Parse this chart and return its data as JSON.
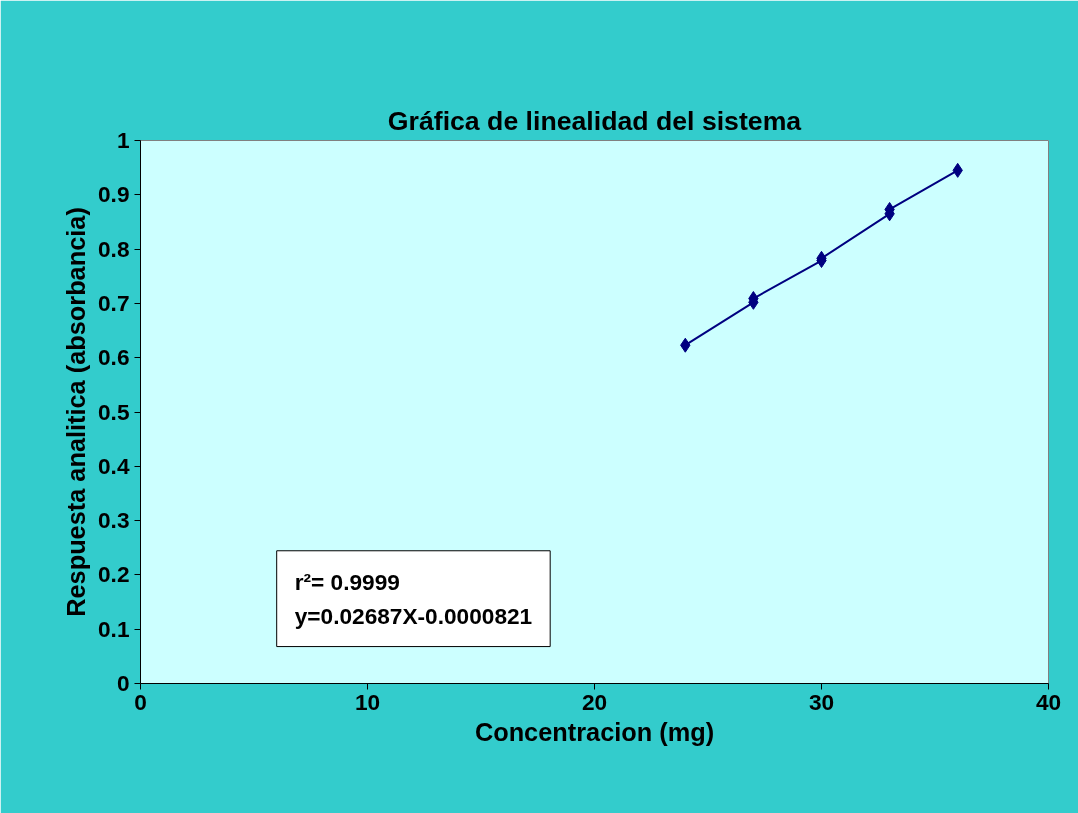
{
  "chart_data": {
    "type": "line",
    "title": "Gráfica de linealidad del sistema",
    "xlabel": "Concentracion (mg)",
    "ylabel": "Respuesta analitica (absorbancia)",
    "x": [
      24,
      27,
      27,
      30,
      30,
      33,
      33,
      36
    ],
    "series": [
      {
        "color": "#000080",
        "values": [
          0.623,
          0.702,
          0.709,
          0.779,
          0.783,
          0.865,
          0.873,
          0.945
        ]
      }
    ],
    "xlim": [
      0,
      40
    ],
    "xticks": [
      0,
      10,
      20,
      30,
      40
    ],
    "ylim": [
      0,
      1
    ],
    "yticks": [
      0,
      0.1,
      0.2,
      0.3,
      0.4,
      0.5,
      0.6,
      0.7,
      0.8,
      0.9,
      1
    ],
    "grid": false,
    "marker": "diamond",
    "line_style": "solid",
    "annotations": [
      "r²= 0.9999",
      "y=0.02687X-0.0000821"
    ]
  }
}
